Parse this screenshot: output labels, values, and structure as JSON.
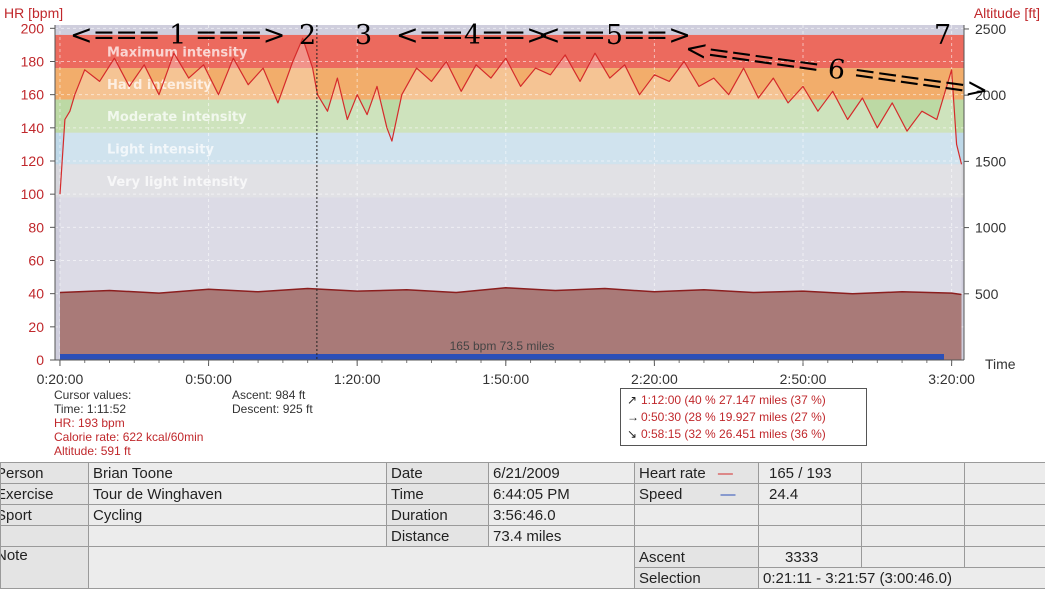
{
  "chart_data": {
    "type": "line",
    "left_axis": {
      "label": "HR [bpm]",
      "ticks": [
        0,
        20,
        40,
        60,
        80,
        100,
        120,
        140,
        160,
        180,
        200
      ],
      "ylim": [
        0,
        202
      ]
    },
    "right_axis": {
      "label": "Altitude [ft]",
      "ticks": [
        500,
        1000,
        1500,
        2000,
        2500
      ],
      "ylim": [
        0,
        2530
      ]
    },
    "x_axis": {
      "label": "Time",
      "ticks": [
        "0:20:00",
        "0:50:00",
        "1:20:00",
        "1:50:00",
        "2:20:00",
        "2:50:00",
        "3:20:00"
      ]
    },
    "zones": [
      {
        "label": "Maximum intensity",
        "from": 176,
        "to": 196,
        "color": "#ec6a5e"
      },
      {
        "label": "Hard intensity",
        "from": 157,
        "to": 176,
        "color": "#f2ad6b"
      },
      {
        "label": "Moderate intensity",
        "from": 137,
        "to": 157,
        "color": "#bcd9a4"
      },
      {
        "label": "Light intensity",
        "from": 118,
        "to": 137,
        "color": "#bed8e8"
      },
      {
        "label": "Very light intensity",
        "from": 98,
        "to": 118,
        "color": "#d6d6dc"
      }
    ],
    "series": [
      {
        "name": "Heart rate",
        "color": "#d52b2b",
        "x_minutes": [
          20,
          21,
          22,
          23,
          25,
          28,
          31,
          34,
          37,
          40,
          43,
          46,
          49,
          52,
          55,
          58,
          61,
          64,
          67,
          69,
          71,
          72,
          74,
          76,
          78,
          80,
          82,
          84,
          86,
          87,
          89,
          92,
          95,
          98,
          101,
          104,
          107,
          110,
          113,
          116,
          119,
          122,
          125,
          128,
          131,
          134,
          137,
          140,
          143,
          146,
          149,
          152,
          155,
          158,
          161,
          164,
          167,
          170,
          173,
          176,
          179,
          182,
          185,
          188,
          191,
          194,
          197,
          200,
          201,
          202
        ],
        "values": [
          100,
          145,
          150,
          160,
          175,
          168,
          182,
          165,
          178,
          160,
          185,
          170,
          178,
          160,
          182,
          166,
          176,
          155,
          180,
          194,
          176,
          160,
          150,
          170,
          145,
          160,
          148,
          165,
          140,
          132,
          160,
          176,
          168,
          180,
          162,
          178,
          170,
          182,
          165,
          176,
          172,
          184,
          168,
          185,
          170,
          178,
          160,
          172,
          168,
          180,
          165,
          170,
          160,
          176,
          158,
          170,
          155,
          165,
          150,
          162,
          145,
          158,
          140,
          155,
          138,
          150,
          145,
          175,
          130,
          118
        ]
      },
      {
        "name": "Altitude",
        "color": "#8b1e1e",
        "x_minutes": [
          20,
          30,
          40,
          50,
          60,
          70,
          80,
          90,
          100,
          110,
          120,
          130,
          140,
          150,
          160,
          170,
          180,
          190,
          200,
          202
        ],
        "values": [
          510,
          525,
          505,
          535,
          515,
          540,
          520,
          530,
          510,
          545,
          525,
          540,
          515,
          530,
          510,
          520,
          500,
          515,
          505,
          495
        ]
      }
    ],
    "center_label": "165 bpm 73.5 miles",
    "annotations": [
      "<=== 1 ===>",
      "2",
      "3",
      "<==4==>",
      "<==5==>",
      "<===== 6 =====>",
      "7"
    ],
    "cursor_time": "1:11:52"
  },
  "cursor": {
    "title": "Cursor values:",
    "time": "Time: 1:11:52",
    "hr": "HR: 193 bpm",
    "calorie": "Calorie rate: 622 kcal/60min",
    "altitude": "Altitude: 591 ft"
  },
  "climb": {
    "ascent": "Ascent: 984 ft",
    "descent": "Descent: 925 ft"
  },
  "selection_summary": [
    {
      "icon": "↗",
      "text": "1:12:00   (40 % 27.147 miles   (37 %)"
    },
    {
      "icon": "→",
      "text": "0:50:30   (28 % 19.927 miles   (27 %)"
    },
    {
      "icon": "↘",
      "text": "0:58:15   (32 % 26.451 miles   (36 %)"
    }
  ],
  "table": {
    "person_label": "Person",
    "person_value": "Brian Toone",
    "exercise_label": "Exercise",
    "exercise_value": "Tour de Winghaven",
    "sport_label": "Sport",
    "sport_value": "Cycling",
    "note_label": "Note",
    "date_label": "Date",
    "date_value": "6/21/2009",
    "time_label": "Time",
    "time_value": "6:44:05 PM",
    "duration_label": "Duration",
    "duration_value": "3:56:46.0",
    "distance_label": "Distance",
    "distance_value": "73.4 miles",
    "hr_label": "Heart rate",
    "hr_value": "165 / 193",
    "speed_label": "Speed",
    "speed_value": "24.4",
    "ascent_label": "Ascent",
    "ascent_value": "3333",
    "selection_label": "Selection",
    "selection_value": "0:21:11 - 3:21:57 (3:00:46.0)"
  },
  "colors": {
    "hr_line": "#d52b2b",
    "altitude_fill": "#a97a78",
    "plot_bg": "#cfcedd",
    "selection_bar": "#2b4fb8",
    "hr_legend": "#d52b2b",
    "speed_legend": "#2b4fb8"
  }
}
